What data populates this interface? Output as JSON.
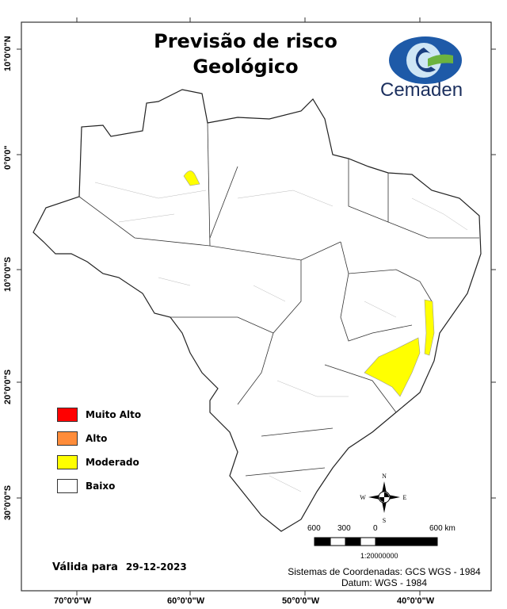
{
  "title": {
    "line1": "Previsão de risco",
    "line2": "Geológico"
  },
  "logo": {
    "text": "Cemaden",
    "icon": "eye-c-logo"
  },
  "legend": [
    {
      "label": "Muito Alto",
      "color": "#ff0000"
    },
    {
      "label": "Alto",
      "color": "#ff8c3a"
    },
    {
      "label": "Moderado",
      "color": "#ffff00"
    },
    {
      "label": "Baixo",
      "color": "#ffffff"
    }
  ],
  "validity": {
    "label": "Válida para",
    "date": "29-12-2023"
  },
  "coordinate_system": {
    "line1": "Sistemas de Coordenadas: GCS WGS - 1984",
    "line2": "Datum: WGS - 1984"
  },
  "scale": {
    "labels": [
      "600",
      "300",
      "0",
      "600 km"
    ],
    "ratio": "1:20000000"
  },
  "compass": {
    "n": "N",
    "s": "S",
    "e": "E",
    "w": "W"
  },
  "axes": {
    "longitude": [
      "70°0'0\"W",
      "60°0'0\"W",
      "50°0'0\"W",
      "40°0'0\"W"
    ],
    "latitude": [
      "10°0'0\"N",
      "0°0'0\"",
      "10°0'0\"S",
      "20°0'0\"S",
      "30°0'0\"S"
    ]
  },
  "risk_areas": [
    {
      "level": "Moderado",
      "region": "northwest Amazon"
    },
    {
      "level": "Moderado",
      "region": "southern Bahia coast"
    },
    {
      "level": "Moderado",
      "region": "eastern Minas Gerais"
    }
  ]
}
